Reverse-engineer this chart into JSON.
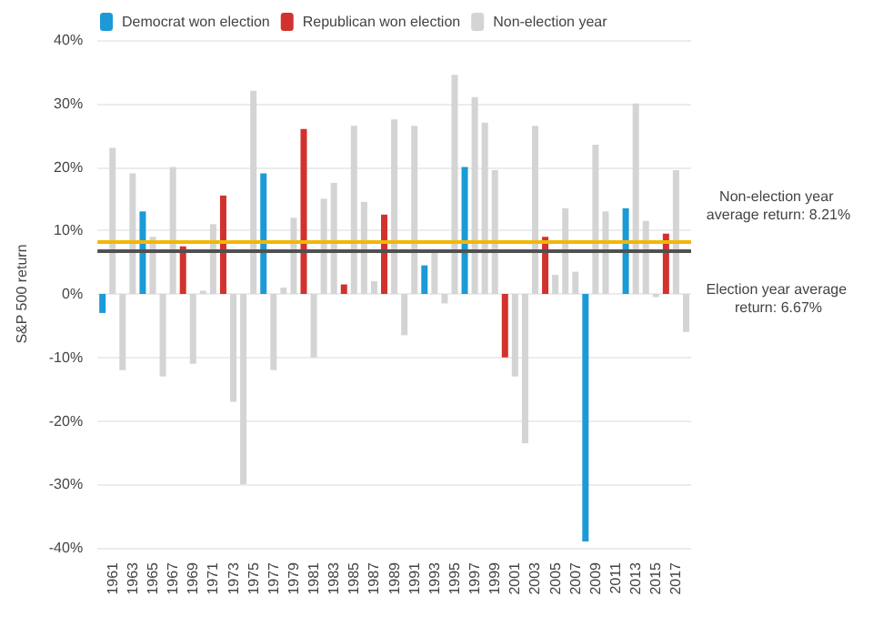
{
  "chart_data": {
    "type": "bar",
    "ylabel": "S&P 500 return",
    "categories": [
      null,
      "1961",
      null,
      "1963",
      null,
      "1965",
      null,
      "1967",
      null,
      "1969",
      null,
      "1971",
      null,
      "1973",
      null,
      "1975",
      null,
      "1977",
      null,
      "1979",
      null,
      "1981",
      null,
      "1983",
      null,
      "1985",
      null,
      "1987",
      null,
      "1989",
      null,
      "1991",
      null,
      "1993",
      null,
      "1995",
      null,
      "1997",
      null,
      "1999",
      null,
      "2001",
      null,
      "2003",
      null,
      "2005",
      null,
      "2007",
      null,
      "2009",
      null,
      "2011",
      null,
      "2013",
      null,
      "2015",
      null,
      "2017",
      null
    ],
    "series": [
      {
        "name": "Democrat won election",
        "color": "#1b9ad6",
        "values": [
          -3,
          null,
          null,
          null,
          13,
          null,
          null,
          null,
          null,
          null,
          null,
          null,
          null,
          null,
          null,
          null,
          19,
          null,
          null,
          null,
          null,
          null,
          null,
          null,
          null,
          null,
          null,
          null,
          null,
          null,
          null,
          null,
          4.5,
          null,
          null,
          null,
          20,
          null,
          null,
          null,
          null,
          null,
          null,
          null,
          null,
          null,
          null,
          null,
          -39,
          null,
          null,
          null,
          13.5,
          null,
          null,
          null,
          null,
          null,
          null
        ]
      },
      {
        "name": "Republican won election",
        "color": "#d2322d",
        "values": [
          null,
          null,
          null,
          null,
          null,
          null,
          null,
          null,
          7.5,
          null,
          null,
          null,
          15.5,
          null,
          null,
          null,
          null,
          null,
          null,
          null,
          26,
          null,
          null,
          null,
          1.5,
          null,
          null,
          null,
          12.5,
          null,
          null,
          null,
          null,
          null,
          null,
          null,
          null,
          null,
          null,
          null,
          -10,
          null,
          null,
          null,
          9,
          null,
          null,
          null,
          null,
          null,
          null,
          null,
          null,
          null,
          null,
          null,
          9.5,
          null,
          null
        ]
      },
      {
        "name": "Non-election year",
        "color": "#d4d4d4",
        "values": [
          null,
          23,
          -12,
          19,
          null,
          9,
          -13,
          20,
          null,
          -11,
          0.5,
          11,
          null,
          -17,
          -30,
          32,
          null,
          -12,
          1,
          12,
          null,
          -10,
          15,
          17.5,
          null,
          26.5,
          14.5,
          2,
          null,
          27.5,
          -6.5,
          26.5,
          null,
          7,
          -1.5,
          34.5,
          null,
          31,
          27,
          19.5,
          null,
          -13,
          -23.5,
          26.5,
          null,
          3,
          13.5,
          3.5,
          null,
          23.5,
          13,
          0,
          null,
          30,
          11.5,
          -0.5,
          null,
          19.5,
          -6
        ]
      }
    ],
    "ylim": [
      -40,
      40
    ],
    "yticks": [
      {
        "value": -40,
        "label": "-40%"
      },
      {
        "value": -30,
        "label": "-30%"
      },
      {
        "value": -20,
        "label": "-20%"
      },
      {
        "value": -10,
        "label": "-10%"
      },
      {
        "value": 0,
        "label": "0%"
      },
      {
        "value": 10,
        "label": "10%"
      },
      {
        "value": 20,
        "label": "20%"
      },
      {
        "value": 30,
        "label": "30%"
      },
      {
        "value": 40,
        "label": "40%"
      }
    ],
    "ref_lines": [
      {
        "axis": "y",
        "value": 8.21,
        "label": "Non-election year average return: 8.21%",
        "color": "#f2b705"
      },
      {
        "axis": "y",
        "value": 6.67,
        "label": "Election year average return: 6.67%",
        "color": "#505050"
      }
    ],
    "grid": "y",
    "legend": "top left"
  }
}
